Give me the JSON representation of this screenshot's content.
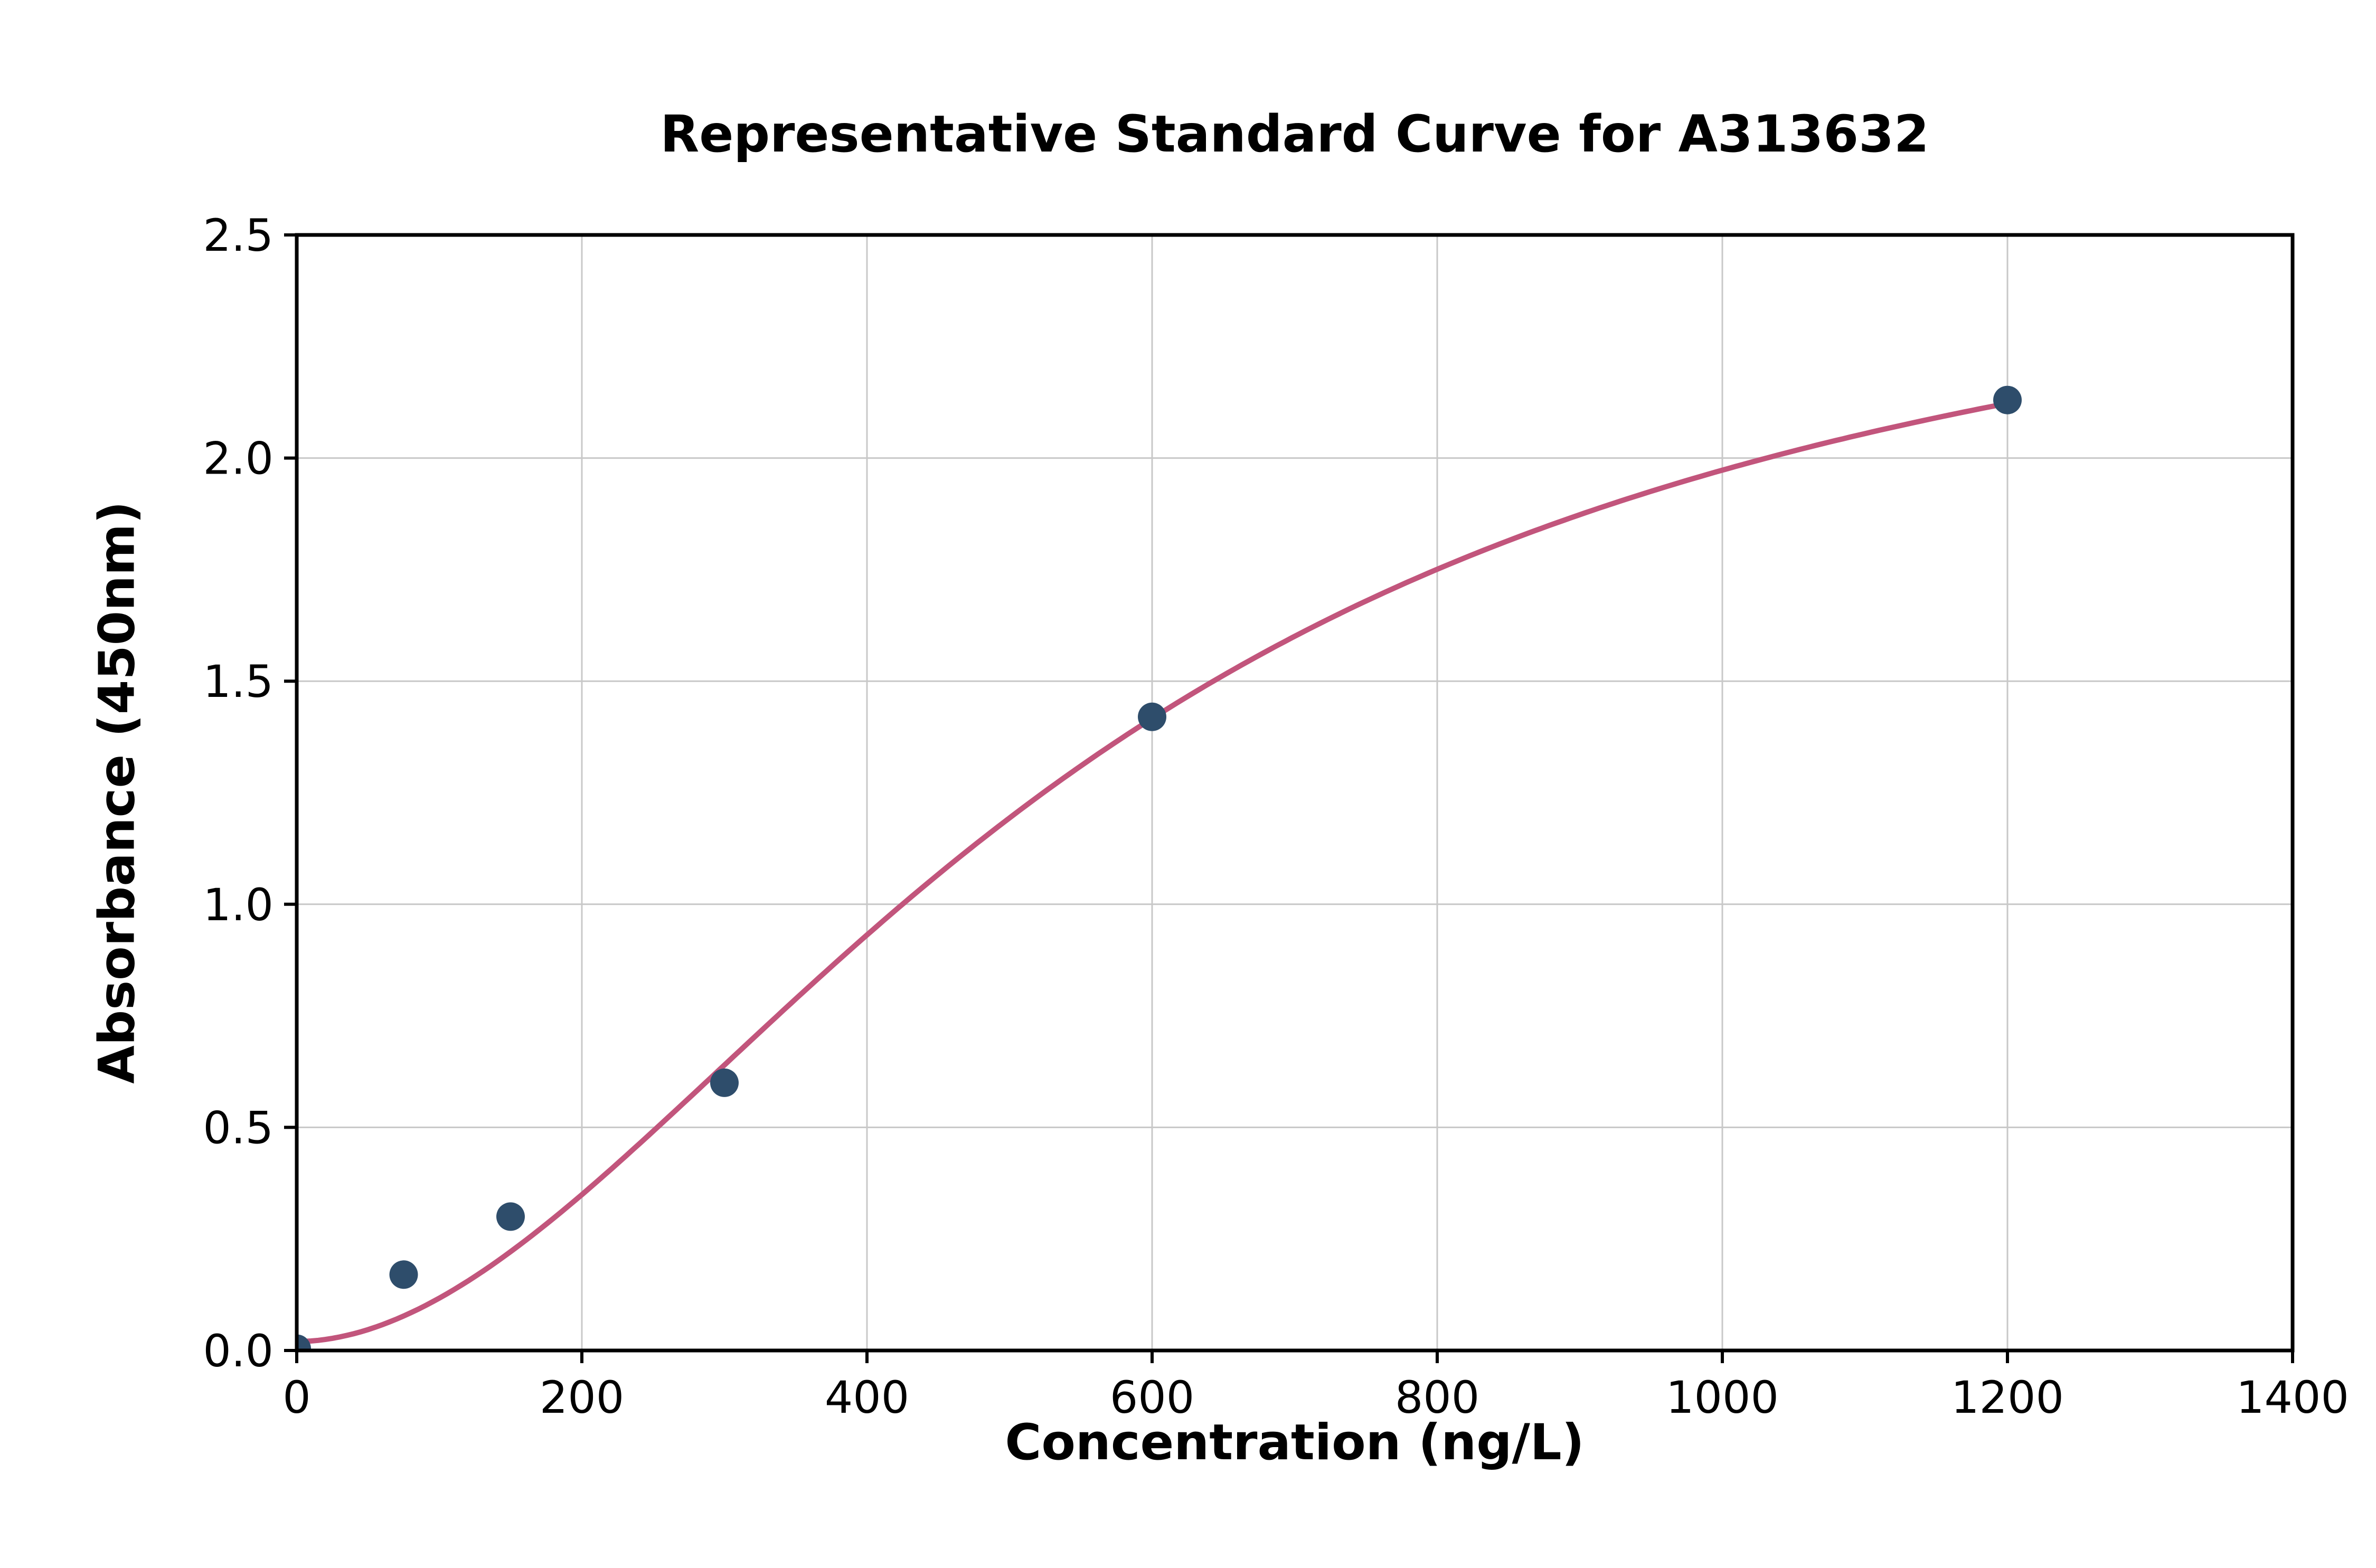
{
  "title": "Representative Standard Curve for A313632",
  "chart_data": {
    "type": "scatter",
    "title": "Representative Standard Curve for A313632",
    "xlabel": "Concentration (ng/L)",
    "ylabel": "Absorbance (450nm)",
    "xlim": [
      0,
      1400
    ],
    "ylim": [
      0,
      2.5
    ],
    "x_ticks": [
      0,
      200,
      400,
      600,
      800,
      1000,
      1200,
      1400
    ],
    "x_tick_labels": [
      "0",
      "200",
      "400",
      "600",
      "800",
      "1000",
      "1200",
      "1400"
    ],
    "y_ticks": [
      0.0,
      0.5,
      1.0,
      1.5,
      2.0,
      2.5
    ],
    "y_tick_labels": [
      "0.0",
      "0.5",
      "1.0",
      "1.5",
      "2.0",
      "2.5"
    ],
    "grid": true,
    "legend": "none",
    "points": [
      {
        "x": 0,
        "y": 0.004
      },
      {
        "x": 75,
        "y": 0.17
      },
      {
        "x": 150,
        "y": 0.3
      },
      {
        "x": 300,
        "y": 0.6
      },
      {
        "x": 600,
        "y": 1.42
      },
      {
        "x": 1200,
        "y": 2.13
      }
    ],
    "fit_curve": {
      "model": "4pl",
      "a": 0.02,
      "b": 1.9,
      "c": 550,
      "d": 2.6,
      "x_range": [
        0,
        1205
      ]
    },
    "colors": {
      "point": "#2e4d6b",
      "curve": "#c2557c",
      "grid": "#c8c8c8",
      "axis": "#000000",
      "background": "#ffffff"
    }
  }
}
